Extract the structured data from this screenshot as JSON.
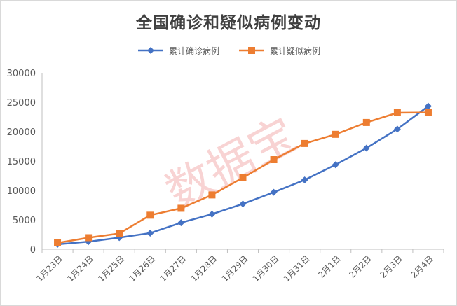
{
  "chart_data": {
    "type": "line",
    "title": "全国确诊和疑似病例变动",
    "xlabel": "",
    "ylabel": "",
    "categories": [
      "1月23日",
      "1月24日",
      "1月25日",
      "1月26日",
      "1月27日",
      "1月28日",
      "1月29日",
      "1月30日",
      "1月31日",
      "2月1日",
      "2月2日",
      "2月3日",
      "2月4日"
    ],
    "ylim": [
      0,
      30000
    ],
    "yticks": [
      0,
      5000,
      10000,
      15000,
      20000,
      25000,
      30000
    ],
    "grid": false,
    "legend_position": "top",
    "series": [
      {
        "name": "累计确诊病例",
        "color": "#4472c4",
        "marker": "diamond",
        "values": [
          830,
          1287,
          1975,
          2744,
          4515,
          5974,
          7711,
          9692,
          11791,
          14380,
          17205,
          20438,
          24324
        ]
      },
      {
        "name": "累计疑似病例",
        "color": "#ed7d31",
        "marker": "square",
        "values": [
          1072,
          1965,
          2684,
          5794,
          6973,
          9239,
          12167,
          15238,
          17988,
          19544,
          21558,
          23214,
          23260
        ]
      }
    ]
  },
  "watermark": {
    "text": "数据宝"
  }
}
